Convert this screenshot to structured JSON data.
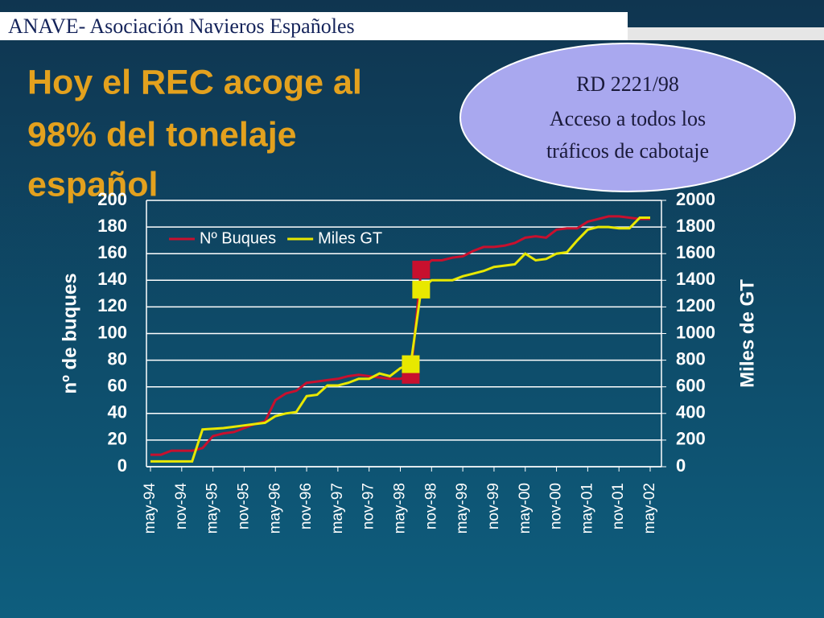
{
  "header": "ANAVE- Asociación Navieros Españoles",
  "title_lines": [
    "Hoy el REC acoge al",
    "98% del tonelaje",
    "español"
  ],
  "callout_lines": [
    "RD 2221/98",
    "Acceso a todos los",
    "tráficos de cabotaje"
  ],
  "chart_data": {
    "type": "line",
    "categories": [
      "may-94",
      null,
      null,
      "nov-94",
      null,
      null,
      "may-95",
      null,
      null,
      "nov-95",
      null,
      null,
      "may-96",
      null,
      null,
      "nov-96",
      null,
      null,
      "may-97",
      null,
      null,
      "nov-97",
      null,
      null,
      "may-98",
      null,
      null,
      "nov-98",
      null,
      null,
      "may-99",
      null,
      null,
      "nov-99",
      null,
      null,
      "may-00",
      null,
      null,
      "nov-00",
      null,
      null,
      "may-01",
      null,
      null,
      "nov-01",
      null,
      null,
      "may-02"
    ],
    "series": [
      {
        "name": "Nº Buques",
        "color": "#c8102e",
        "axis": "y",
        "markers": [
          25,
          26
        ],
        "values": [
          9,
          9,
          12,
          12,
          12,
          14,
          23,
          25,
          26,
          29,
          32,
          34,
          50,
          55,
          57,
          63,
          64,
          65,
          66,
          68,
          69,
          68,
          67,
          66,
          66,
          69,
          148,
          155,
          155,
          157,
          158,
          162,
          165,
          165,
          166,
          168,
          172,
          173,
          172,
          178,
          179,
          179,
          184,
          186,
          188,
          188,
          187,
          186,
          186
        ]
      },
      {
        "name": "Miles GT",
        "color": "#e8e800",
        "axis": "y2",
        "markers": [
          25,
          26
        ],
        "values": [
          40,
          40,
          40,
          40,
          40,
          280,
          285,
          290,
          300,
          310,
          320,
          330,
          380,
          400,
          410,
          530,
          540,
          610,
          610,
          630,
          660,
          660,
          700,
          680,
          740,
          770,
          1330,
          1400,
          1400,
          1400,
          1430,
          1450,
          1470,
          1500,
          1510,
          1520,
          1600,
          1550,
          1560,
          1600,
          1610,
          1700,
          1780,
          1800,
          1800,
          1790,
          1790,
          1870,
          1870
        ]
      }
    ],
    "y_label": "nº de buques",
    "y2_label": "Miles de GT",
    "ylim": [
      0,
      200
    ],
    "yticks": [
      0,
      20,
      40,
      60,
      80,
      100,
      120,
      140,
      160,
      180,
      200
    ],
    "y2lim": [
      0,
      2000
    ],
    "y2ticks": [
      0,
      200,
      400,
      600,
      800,
      1000,
      1200,
      1400,
      1600,
      1800,
      2000
    ],
    "grid": true,
    "legend": "top-left"
  }
}
